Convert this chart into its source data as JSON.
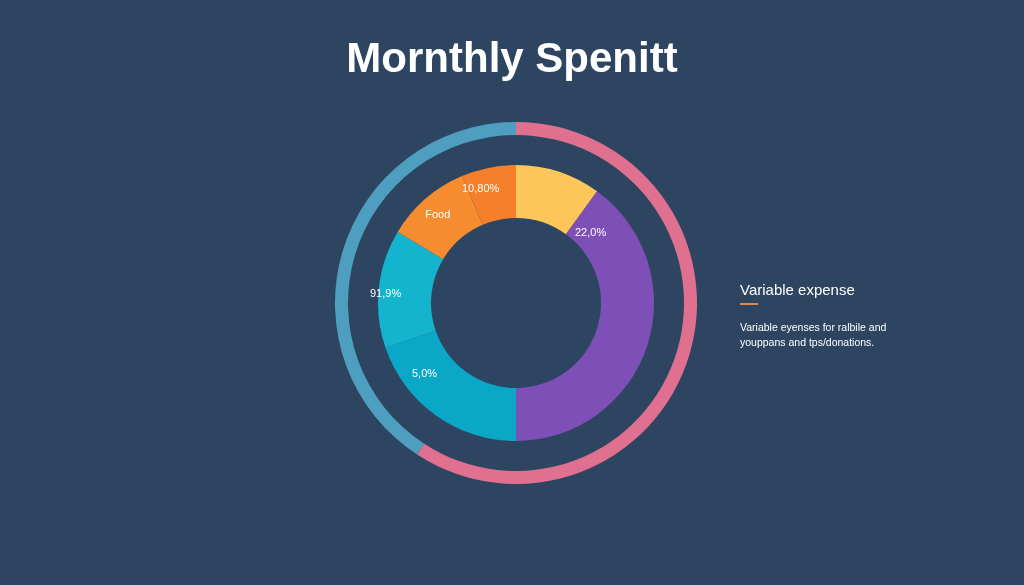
{
  "chart_data": [
    {
      "type": "donut",
      "title": "Mornthly Spenitt",
      "categories": [
        null,
        null,
        null,
        null,
        "Food",
        null
      ],
      "values": [
        10.0,
        40.0,
        19.7,
        13.9,
        10.0,
        6.4
      ],
      "colors": [
        "#fcc65a",
        "#7f4fb8",
        "#0aa8c6",
        "#14b4cf",
        "#f58c30",
        "#f57f2a"
      ],
      "annotations": [
        "Variable expense",
        "Variable eyenses for ralbile and youppans and tps/donations.",
        "10,80%",
        "22,0%",
        "91,9%",
        "5,0%"
      ]
    },
    {
      "type": "donut",
      "categories": [
        null,
        null
      ],
      "values": [
        59.2,
        40.8
      ],
      "colors": [
        "#e0708f",
        "#4e9fbf"
      ]
    }
  ]
}
